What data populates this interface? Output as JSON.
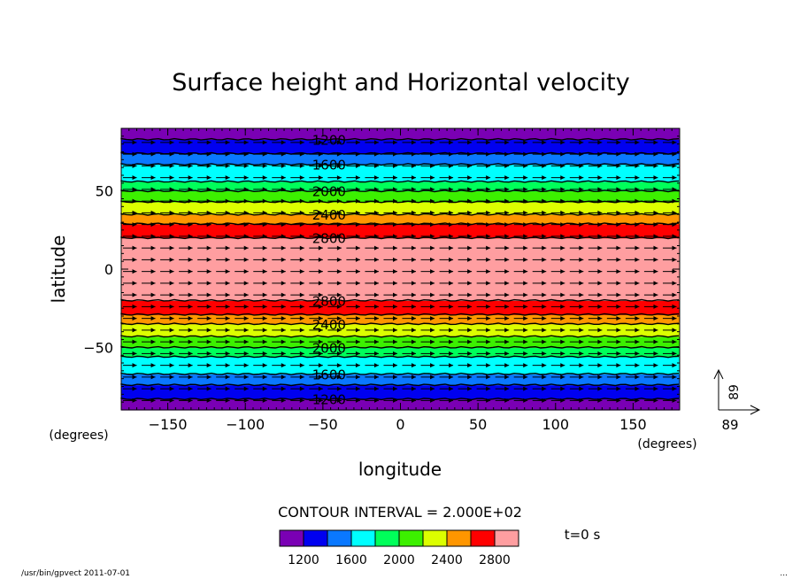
{
  "chart_data": {
    "type": "contour",
    "title": "Surface height and Horizontal velocity",
    "xlabel": "longitude",
    "ylabel": "latitude",
    "x_unit": "(degrees)",
    "y_unit": "(degrees)",
    "xlim": [
      -180,
      180
    ],
    "ylim": [
      -90,
      90
    ],
    "x_ticks": [
      -150,
      -100,
      -50,
      0,
      50,
      100,
      150
    ],
    "y_ticks": [
      -50,
      0,
      50
    ],
    "x_tick_labels": [
      "−150",
      "−100",
      "−50",
      "0",
      "50",
      "100",
      "150"
    ],
    "y_tick_labels": [
      "−50",
      "0",
      "50"
    ],
    "contour_interval_label": "CONTOUR INTERVAL = 2.000E+02",
    "contour_interval": 200,
    "levels": [
      1200,
      1400,
      1600,
      1800,
      2000,
      2200,
      2400,
      2600,
      2800
    ],
    "labeled_levels": [
      1200,
      1600,
      2000,
      2400,
      2800
    ],
    "field_profile": {
      "description_levels_by_latitude": [
        {
          "lat": 90,
          "value": 1100
        },
        {
          "lat": 83,
          "value": 1200
        },
        {
          "lat": 74,
          "value": 1400
        },
        {
          "lat": 67,
          "value": 1600
        },
        {
          "lat": 56,
          "value": 1800
        },
        {
          "lat": 50,
          "value": 2000
        },
        {
          "lat": 43,
          "value": 2200
        },
        {
          "lat": 35,
          "value": 2400
        },
        {
          "lat": 29,
          "value": 2600
        },
        {
          "lat": 20,
          "value": 2800
        },
        {
          "lat": 0,
          "value": 3000
        },
        {
          "lat": -20,
          "value": 2800
        },
        {
          "lat": -29,
          "value": 2600
        },
        {
          "lat": -35,
          "value": 2400
        },
        {
          "lat": -43,
          "value": 2200
        },
        {
          "lat": -50,
          "value": 2000
        },
        {
          "lat": -56,
          "value": 1800
        },
        {
          "lat": -67,
          "value": 1600
        },
        {
          "lat": -74,
          "value": 1400
        },
        {
          "lat": -83,
          "value": 1200
        },
        {
          "lat": -90,
          "value": 1100
        }
      ]
    },
    "colorbar": {
      "colors": [
        "#7a00b4",
        "#0000f0",
        "#0a78ff",
        "#00ffff",
        "#00ff5a",
        "#3cf000",
        "#dcff00",
        "#ff9600",
        "#ff0000",
        "#ff9ea0"
      ],
      "tick_labels": [
        "1200",
        "1600",
        "2000",
        "2400",
        "2800"
      ]
    },
    "vector": {
      "reference_value": "89",
      "direction": "eastward"
    },
    "time_label": "t=0 s",
    "footer_left": "/usr/bin/gpvect  2011-07-01",
    "footer_right": "..."
  }
}
